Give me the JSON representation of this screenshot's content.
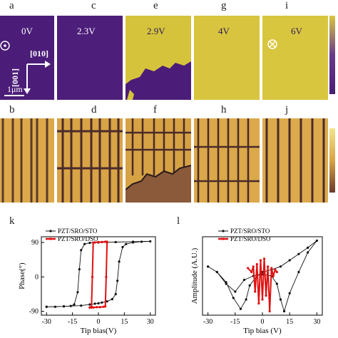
{
  "panel_letters": [
    "a",
    "c",
    "e",
    "g",
    "i",
    "b",
    "d",
    "f",
    "h",
    "j",
    "k",
    "l"
  ],
  "voltages": [
    "0V",
    "2.3V",
    "2.9V",
    "4V",
    "6V"
  ],
  "scale": {
    "dir_right": "[010]",
    "dir_down": "[001]",
    "scale_bar": "1μm",
    "colorbar_min": "-1"
  },
  "colors": {
    "purple": "#4b1d78",
    "yellow": "#d6c33c",
    "trace_black": "#111111",
    "trace_red": "#e01010"
  },
  "chart_data": [
    {
      "type": "line",
      "panel": "k",
      "xlabel": "Tip bias(V)",
      "ylabel": "Phase(°)",
      "xlim": [
        -33,
        33
      ],
      "ylim": [
        -100,
        105
      ],
      "xticks": [
        "-30",
        "-15",
        "0",
        "15",
        "30"
      ],
      "yticks": [
        "90",
        "0",
        "-90"
      ],
      "series": [
        {
          "name": "PZT/SRO/STO",
          "color": "#111111",
          "x": [
            -30,
            -20,
            -10,
            -5,
            -2,
            0,
            2,
            5,
            8,
            10,
            11,
            12,
            14,
            16,
            20,
            25,
            30,
            20,
            10,
            0,
            -5,
            -8,
            -10,
            -11,
            -12,
            -14,
            -16,
            -20,
            -25,
            -30
          ],
          "y": [
            -78,
            -77,
            -75,
            -72,
            -70,
            -69,
            -67,
            -64,
            -58,
            -45,
            -10,
            40,
            78,
            86,
            90,
            92,
            93,
            92,
            91,
            90,
            89,
            86,
            70,
            20,
            -40,
            -72,
            -76,
            -77,
            -78,
            -78
          ]
        },
        {
          "name": "PZT/SRO/DSO",
          "color": "#e01010",
          "x": [
            -5,
            -3,
            -1,
            1,
            3,
            4,
            4.5,
            5,
            5,
            4,
            2,
            0,
            -2,
            -3,
            -3.5,
            -4,
            -4,
            -5
          ],
          "y": [
            -80,
            -80,
            -79,
            -79,
            -78,
            -77,
            0,
            90,
            92,
            92,
            91,
            91,
            90,
            90,
            0,
            -78,
            -80,
            -80
          ]
        }
      ]
    },
    {
      "type": "line",
      "panel": "l",
      "xlabel": "Tip bias (V)",
      "ylabel": "Amplitude (A.U.)",
      "xlim": [
        -33,
        33
      ],
      "ylim": [
        0,
        1
      ],
      "xticks": [
        "-30",
        "-15",
        "0",
        "15",
        "30"
      ],
      "yticks": [],
      "series": [
        {
          "name": "PZT/SRO/STO",
          "color": "#111111",
          "x": [
            -30,
            -25,
            -20,
            -16,
            -12,
            -9,
            -7,
            -3,
            0,
            5,
            10,
            15,
            20,
            25,
            30,
            25,
            20,
            15,
            12,
            10,
            8,
            5,
            0,
            -5,
            -10,
            -15,
            -20,
            -25,
            -30
          ],
          "y": [
            0.62,
            0.55,
            0.42,
            0.22,
            0.08,
            0.2,
            0.38,
            0.5,
            0.55,
            0.58,
            0.62,
            0.7,
            0.78,
            0.86,
            0.95,
            0.8,
            0.55,
            0.28,
            0.05,
            0.2,
            0.4,
            0.5,
            0.52,
            0.5,
            0.45,
            0.3,
            0.4,
            0.55,
            0.62
          ]
        },
        {
          "name": "PZT/SRO/DSO",
          "color": "#e01010",
          "x": [
            -8,
            -6,
            -5,
            -4,
            -3,
            -2,
            -1,
            0,
            1,
            2,
            3,
            4,
            5,
            6,
            7,
            8
          ],
          "y": [
            0.6,
            0.55,
            0.62,
            0.3,
            0.65,
            0.15,
            0.7,
            0.2,
            0.72,
            0.25,
            0.62,
            0.05,
            0.6,
            0.5,
            0.58,
            0.55
          ]
        }
      ]
    }
  ]
}
